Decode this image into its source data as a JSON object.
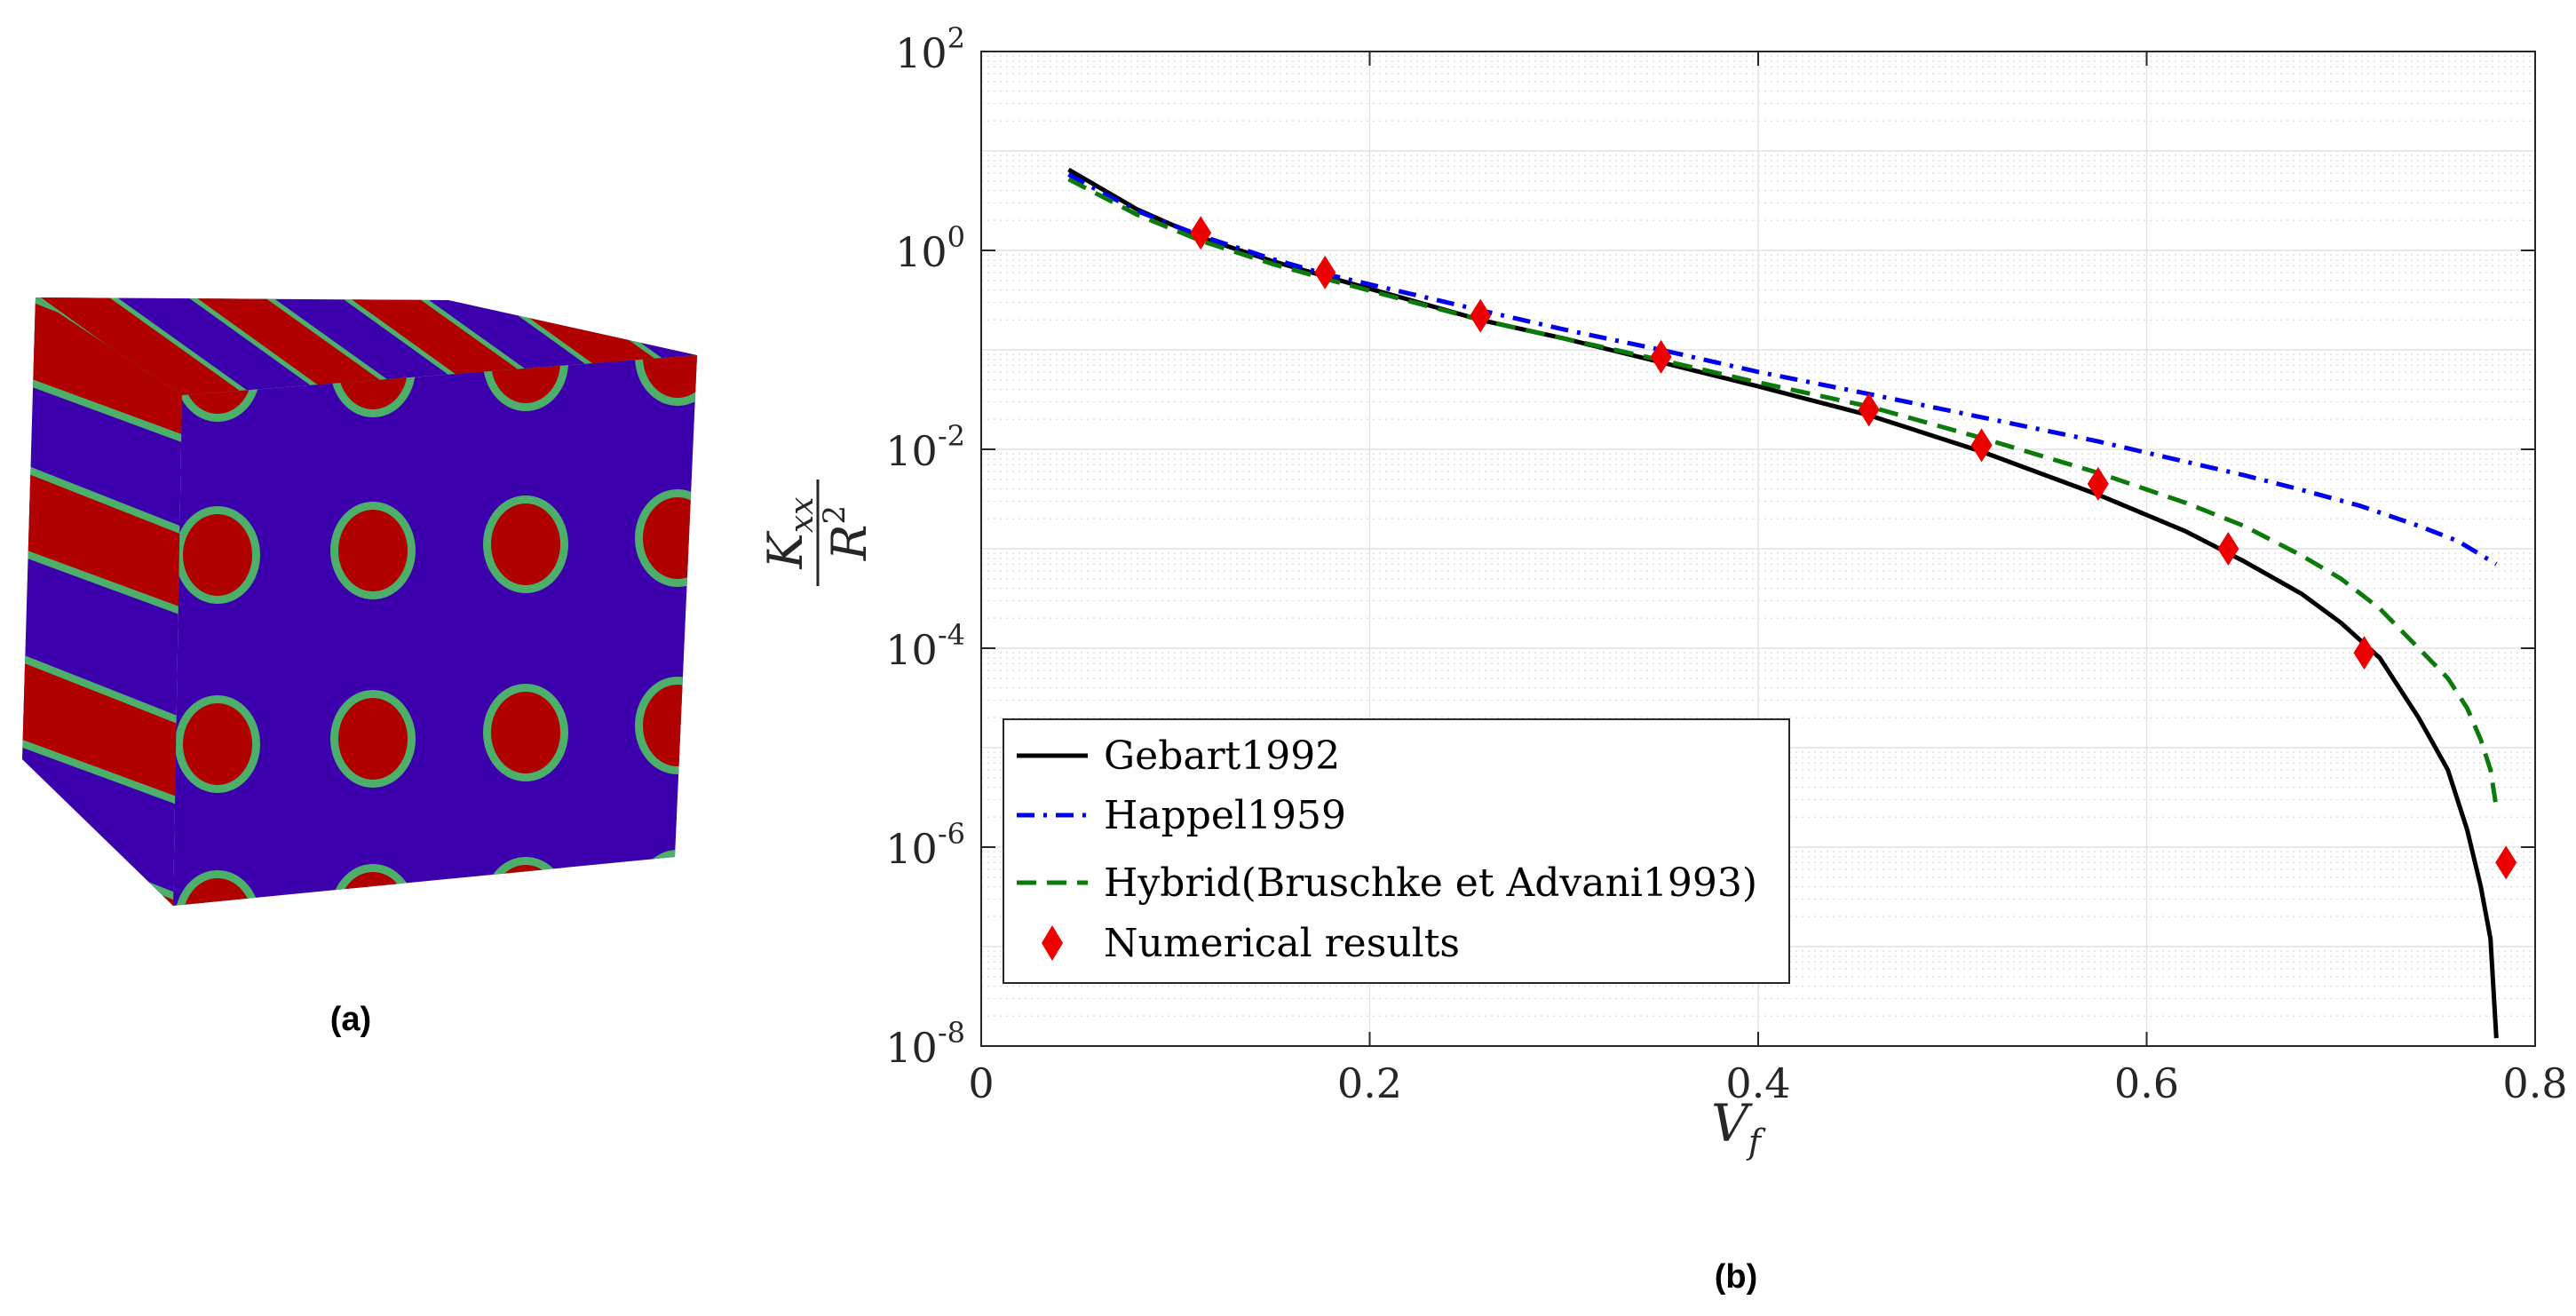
{
  "panels": {
    "a_label": "(a)",
    "b_label": "(b)"
  },
  "cube": {
    "colors": {
      "matrix": "#3d00ad",
      "fiber": "#b00000",
      "interface": "#4caf6a"
    }
  },
  "chart_data": {
    "type": "line",
    "title": "",
    "xlabel": "V_f",
    "xlabel_main": "V",
    "xlabel_sub": "f",
    "ylabel": "K_xx / R^2",
    "ylabel_num": "K",
    "ylabel_num_sub": "xx",
    "ylabel_den": "R",
    "ylabel_den_sup": "2",
    "xlim": [
      0,
      0.8
    ],
    "ylim_log10": [
      -8,
      2
    ],
    "yscale": "log",
    "grid": true,
    "legend_position": "lower-left",
    "x_ticks": [
      {
        "value": 0,
        "label": "0"
      },
      {
        "value": 0.2,
        "label": "0.2"
      },
      {
        "value": 0.4,
        "label": "0.4"
      },
      {
        "value": 0.6,
        "label": "0.6"
      },
      {
        "value": 0.8,
        "label": "0.8"
      }
    ],
    "y_ticks": [
      {
        "exp": 2,
        "base": "10",
        "sup": "2"
      },
      {
        "exp": 0,
        "base": "10",
        "sup": "0"
      },
      {
        "exp": -2,
        "base": "10",
        "sup": "-2"
      },
      {
        "exp": -4,
        "base": "10",
        "sup": "-4"
      },
      {
        "exp": -6,
        "base": "10",
        "sup": "-6"
      },
      {
        "exp": -8,
        "base": "10",
        "sup": "-8"
      }
    ],
    "series": [
      {
        "name": "Gebart1992",
        "style": "solid",
        "color": "#000000",
        "x": [
          0.045,
          0.08,
          0.113,
          0.15,
          0.177,
          0.22,
          0.257,
          0.3,
          0.35,
          0.4,
          0.457,
          0.515,
          0.575,
          0.62,
          0.65,
          0.68,
          0.7,
          0.72,
          0.74,
          0.755,
          0.765,
          0.772,
          0.777,
          0.78
        ],
        "y": [
          6.5,
          2.6,
          1.35,
          0.78,
          0.55,
          0.32,
          0.2,
          0.13,
          0.075,
          0.043,
          0.022,
          0.0095,
          0.0035,
          0.0015,
          0.00075,
          0.00035,
          0.00018,
          8e-05,
          2e-05,
          6e-06,
          1.5e-06,
          4e-07,
          1.2e-07,
          1.2e-08
        ]
      },
      {
        "name": "Happel1959",
        "style": "dashdot",
        "color": "#0000ee",
        "x": [
          0.045,
          0.08,
          0.113,
          0.15,
          0.177,
          0.22,
          0.257,
          0.3,
          0.35,
          0.4,
          0.457,
          0.515,
          0.575,
          0.62,
          0.65,
          0.68,
          0.71,
          0.74,
          0.76,
          0.78
        ],
        "y": [
          5.8,
          2.5,
          1.4,
          0.82,
          0.58,
          0.37,
          0.25,
          0.16,
          0.1,
          0.06,
          0.036,
          0.021,
          0.012,
          0.0075,
          0.0055,
          0.0039,
          0.0027,
          0.0017,
          0.0012,
          0.0007
        ]
      },
      {
        "name": "Hybrid(Bruschke et Advani1993)",
        "style": "dashed",
        "color": "#0a7a0a",
        "x": [
          0.045,
          0.08,
          0.113,
          0.15,
          0.177,
          0.22,
          0.257,
          0.3,
          0.35,
          0.4,
          0.457,
          0.515,
          0.575,
          0.62,
          0.65,
          0.68,
          0.7,
          0.72,
          0.74,
          0.755,
          0.765,
          0.772,
          0.777,
          0.78
        ],
        "y": [
          5.2,
          2.3,
          1.25,
          0.73,
          0.52,
          0.31,
          0.2,
          0.13,
          0.079,
          0.047,
          0.027,
          0.013,
          0.0058,
          0.0029,
          0.0017,
          0.00085,
          0.0005,
          0.00025,
          0.0001,
          5e-05,
          2.5e-05,
          1.2e-05,
          6e-06,
          2.5e-06
        ]
      }
    ],
    "points": {
      "name": "Numerical results",
      "color": "#ee0000",
      "x": [
        0.113,
        0.177,
        0.257,
        0.35,
        0.457,
        0.515,
        0.575,
        0.642,
        0.712,
        0.785
      ],
      "y": [
        1.5,
        0.6,
        0.22,
        0.085,
        0.025,
        0.011,
        0.0045,
        0.001,
        9e-05,
        7e-07
      ]
    }
  }
}
